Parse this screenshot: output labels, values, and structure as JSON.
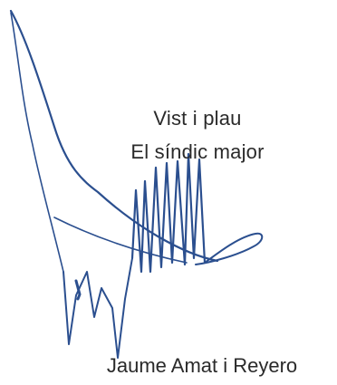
{
  "approval": {
    "line1": "Vist i plau",
    "line2": "El síndic major"
  },
  "signer": {
    "name": "Jaume Amat i Reyero"
  },
  "colors": {
    "ink": "#2b4f8f",
    "text": "#2a2a2a",
    "background": "#ffffff"
  }
}
